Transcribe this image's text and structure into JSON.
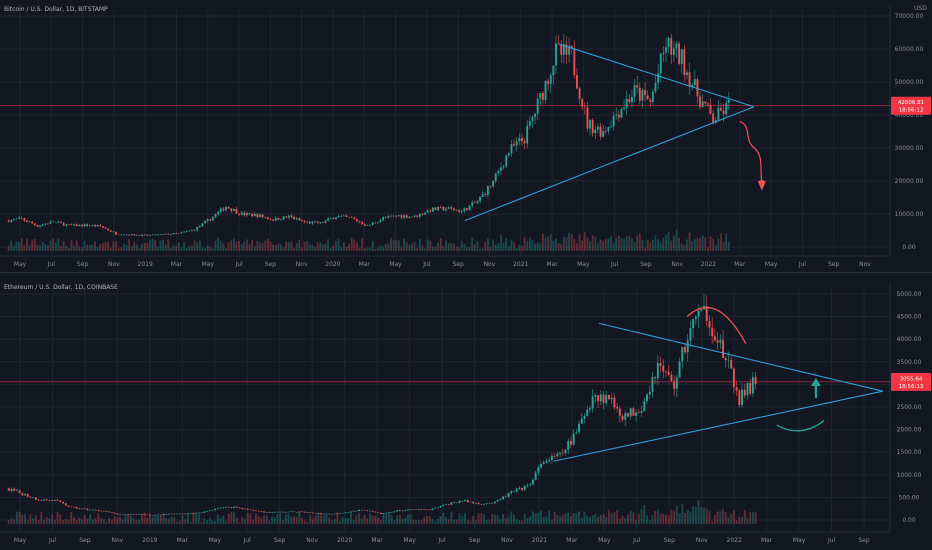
{
  "chart_data": [
    {
      "type": "candlestick",
      "title": "Bitcoin / U.S. Dollar, 1D, BITSTAMP",
      "currency": "USD",
      "ylim": [
        0,
        70000
      ],
      "y_ticks": [
        {
          "v": 70000,
          "label": "70000.00"
        },
        {
          "v": 60000,
          "label": "60000.00"
        },
        {
          "v": 50000,
          "label": "50000.00"
        },
        {
          "v": 40000,
          "label": "40000.00"
        },
        {
          "v": 30000,
          "label": "30000.00"
        },
        {
          "v": 20000,
          "label": "20000.00"
        },
        {
          "v": 10000,
          "label": "10000.00"
        },
        {
          "v": 0,
          "label": "0.00"
        }
      ],
      "x_ticks": [
        "May",
        "Jul",
        "Sep",
        "Nov",
        "2019",
        "Mar",
        "May",
        "Jul",
        "Sep",
        "Nov",
        "2020",
        "Mar",
        "May",
        "Jul",
        "Sep",
        "Nov",
        "2021",
        "Mar",
        "May",
        "Jul",
        "Sep",
        "Nov",
        "2022",
        "Mar",
        "May",
        "Jul",
        "Sep",
        "Nov"
      ],
      "x_range": [
        "2018-04",
        "2022-12"
      ],
      "last_price": {
        "value": 42806.81,
        "label": "42806.81",
        "countdown": "18:56:12",
        "color": "#f23645"
      },
      "series": [
        {
          "x": "2018-04",
          "y": 8000
        },
        {
          "x": "2018-05",
          "y": 8500
        },
        {
          "x": "2018-06",
          "y": 6400
        },
        {
          "x": "2018-07",
          "y": 7700
        },
        {
          "x": "2018-08",
          "y": 6500
        },
        {
          "x": "2018-09",
          "y": 6600
        },
        {
          "x": "2018-10",
          "y": 6300
        },
        {
          "x": "2018-11",
          "y": 4000
        },
        {
          "x": "2018-12",
          "y": 3700
        },
        {
          "x": "2019-01",
          "y": 3500
        },
        {
          "x": "2019-02",
          "y": 3800
        },
        {
          "x": "2019-03",
          "y": 4100
        },
        {
          "x": "2019-04",
          "y": 5300
        },
        {
          "x": "2019-05",
          "y": 8500
        },
        {
          "x": "2019-06",
          "y": 12300
        },
        {
          "x": "2019-07",
          "y": 10000
        },
        {
          "x": "2019-08",
          "y": 9600
        },
        {
          "x": "2019-09",
          "y": 8300
        },
        {
          "x": "2019-10",
          "y": 9200
        },
        {
          "x": "2019-11",
          "y": 7500
        },
        {
          "x": "2019-12",
          "y": 7200
        },
        {
          "x": "2020-01",
          "y": 9300
        },
        {
          "x": "2020-02",
          "y": 8700
        },
        {
          "x": "2020-03",
          "y": 6400
        },
        {
          "x": "2020-04",
          "y": 8700
        },
        {
          "x": "2020-05",
          "y": 9500
        },
        {
          "x": "2020-06",
          "y": 9200
        },
        {
          "x": "2020-07",
          "y": 11300
        },
        {
          "x": "2020-08",
          "y": 11700
        },
        {
          "x": "2020-09",
          "y": 10800
        },
        {
          "x": "2020-10",
          "y": 13800
        },
        {
          "x": "2020-11",
          "y": 19700
        },
        {
          "x": "2020-12",
          "y": 29000
        },
        {
          "x": "2021-01",
          "y": 33000
        },
        {
          "x": "2021-02",
          "y": 45000
        },
        {
          "x": "2021-03",
          "y": 58800
        },
        {
          "x": "2021-04",
          "y": 57700
        },
        {
          "x": "2021-05",
          "y": 37300
        },
        {
          "x": "2021-06",
          "y": 35000
        },
        {
          "x": "2021-07",
          "y": 41500
        },
        {
          "x": "2021-08",
          "y": 47100
        },
        {
          "x": "2021-09",
          "y": 43800
        },
        {
          "x": "2021-10",
          "y": 61300
        },
        {
          "x": "2021-11",
          "y": 57000
        },
        {
          "x": "2021-12",
          "y": 46200
        },
        {
          "x": "2022-01",
          "y": 38500
        },
        {
          "x": "2022-02",
          "y": 42806.81
        }
      ]
    },
    {
      "type": "candlestick",
      "title": "Ethereum / U.S. Dollar, 1D, COINBASE",
      "currency": "USD",
      "ylim": [
        0,
        5000
      ],
      "y_ticks": [
        {
          "v": 5000,
          "label": "5000.00"
        },
        {
          "v": 4500,
          "label": "4500.00"
        },
        {
          "v": 4000,
          "label": "4000.00"
        },
        {
          "v": 3500,
          "label": "3500.00"
        },
        {
          "v": 3000,
          "label": "3000.00"
        },
        {
          "v": 2500,
          "label": "2500.00"
        },
        {
          "v": 2000,
          "label": "2000.00"
        },
        {
          "v": 1500,
          "label": "1500.00"
        },
        {
          "v": 1000,
          "label": "1000.00"
        },
        {
          "v": 500,
          "label": "500.00"
        },
        {
          "v": 0,
          "label": "0.00"
        }
      ],
      "x_ticks": [
        "May",
        "Jul",
        "Sep",
        "Nov",
        "2019",
        "Mar",
        "May",
        "Jul",
        "Sep",
        "Nov",
        "2020",
        "Mar",
        "May",
        "Jul",
        "Sep",
        "Nov",
        "2021",
        "Mar",
        "May",
        "Jul",
        "Sep",
        "Nov",
        "2022",
        "Mar",
        "May",
        "Jul",
        "Sep"
      ],
      "x_range": [
        "2018-04",
        "2022-10"
      ],
      "last_price": {
        "value": 3055.64,
        "label": "3055.64",
        "countdown": "18:56:13",
        "color": "#f23645"
      },
      "series": [
        {
          "x": "2018-04",
          "y": 700
        },
        {
          "x": "2018-05",
          "y": 580
        },
        {
          "x": "2018-06",
          "y": 450
        },
        {
          "x": "2018-07",
          "y": 430
        },
        {
          "x": "2018-08",
          "y": 280
        },
        {
          "x": "2018-09",
          "y": 230
        },
        {
          "x": "2018-10",
          "y": 200
        },
        {
          "x": "2018-11",
          "y": 110
        },
        {
          "x": "2018-12",
          "y": 135
        },
        {
          "x": "2019-01",
          "y": 105
        },
        {
          "x": "2019-02",
          "y": 135
        },
        {
          "x": "2019-03",
          "y": 140
        },
        {
          "x": "2019-04",
          "y": 160
        },
        {
          "x": "2019-05",
          "y": 270
        },
        {
          "x": "2019-06",
          "y": 290
        },
        {
          "x": "2019-07",
          "y": 220
        },
        {
          "x": "2019-08",
          "y": 170
        },
        {
          "x": "2019-09",
          "y": 180
        },
        {
          "x": "2019-10",
          "y": 180
        },
        {
          "x": "2019-11",
          "y": 150
        },
        {
          "x": "2019-12",
          "y": 130
        },
        {
          "x": "2020-01",
          "y": 180
        },
        {
          "x": "2020-02",
          "y": 225
        },
        {
          "x": "2020-03",
          "y": 133
        },
        {
          "x": "2020-04",
          "y": 205
        },
        {
          "x": "2020-05",
          "y": 230
        },
        {
          "x": "2020-06",
          "y": 225
        },
        {
          "x": "2020-07",
          "y": 340
        },
        {
          "x": "2020-08",
          "y": 430
        },
        {
          "x": "2020-09",
          "y": 360
        },
        {
          "x": "2020-10",
          "y": 385
        },
        {
          "x": "2020-11",
          "y": 610
        },
        {
          "x": "2020-12",
          "y": 740
        },
        {
          "x": "2021-01",
          "y": 1300
        },
        {
          "x": "2021-02",
          "y": 1420
        },
        {
          "x": "2021-03",
          "y": 1920
        },
        {
          "x": "2021-04",
          "y": 2770
        },
        {
          "x": "2021-05",
          "y": 2700
        },
        {
          "x": "2021-06",
          "y": 2270
        },
        {
          "x": "2021-07",
          "y": 2540
        },
        {
          "x": "2021-08",
          "y": 3430
        },
        {
          "x": "2021-09",
          "y": 3000
        },
        {
          "x": "2021-10",
          "y": 4290
        },
        {
          "x": "2021-11",
          "y": 4630
        },
        {
          "x": "2021-12",
          "y": 3680
        },
        {
          "x": "2022-01",
          "y": 2690
        },
        {
          "x": "2022-02",
          "y": 3055.64
        }
      ]
    }
  ],
  "colors": {
    "background": "#131722",
    "grid": "#1f2433",
    "up": "#26a69a",
    "down": "#ef5350",
    "trendline": "#2f9fd8",
    "price_line": "#f23645",
    "text": "#b2b5be"
  },
  "annotations": {
    "btc": [
      "triangle-trendlines",
      "red-down-arrow-projection"
    ],
    "eth": [
      "triangle-trendlines",
      "red-arc-top",
      "cyan-up-arrow",
      "cyan-arc-bottom"
    ]
  }
}
